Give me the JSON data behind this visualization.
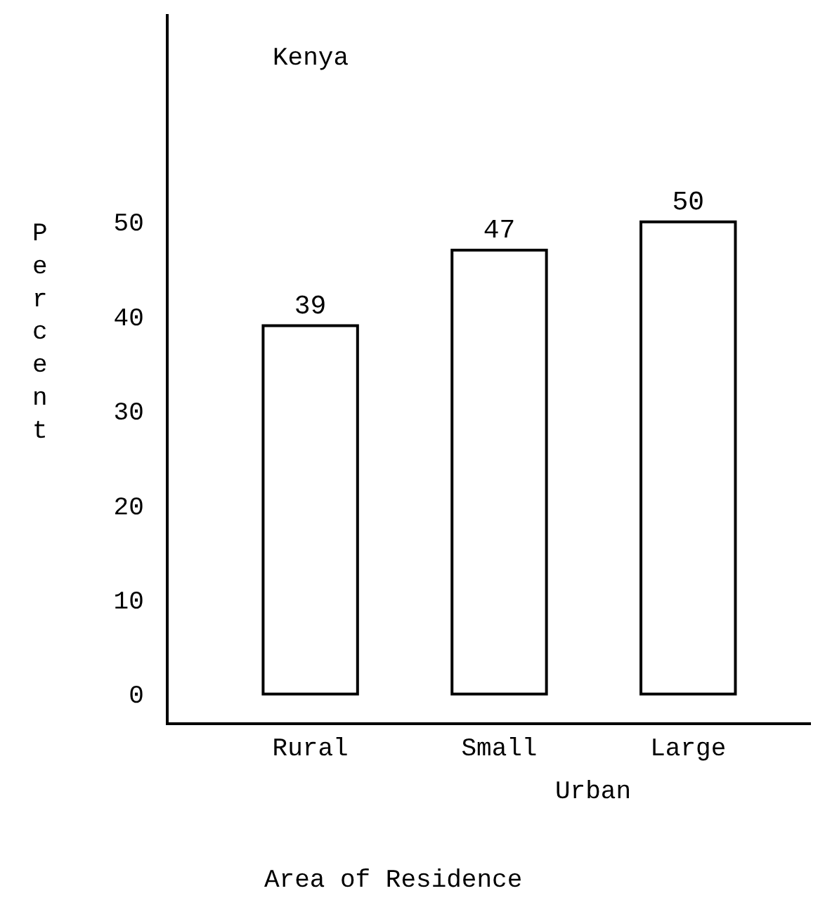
{
  "chart_data": {
    "type": "bar",
    "title": "Kenya",
    "xlabel": "Area of Residence",
    "ylabel": "Percent",
    "categories": [
      "Rural",
      "Small",
      "Large"
    ],
    "values": [
      39,
      47,
      50
    ],
    "color": "#ffffff",
    "data_labels": true,
    "ylim": [
      -3,
      72
    ],
    "yticks": [
      0,
      10,
      20,
      30,
      40,
      50
    ],
    "annotations": [
      "Urban"
    ],
    "legend": false
  }
}
